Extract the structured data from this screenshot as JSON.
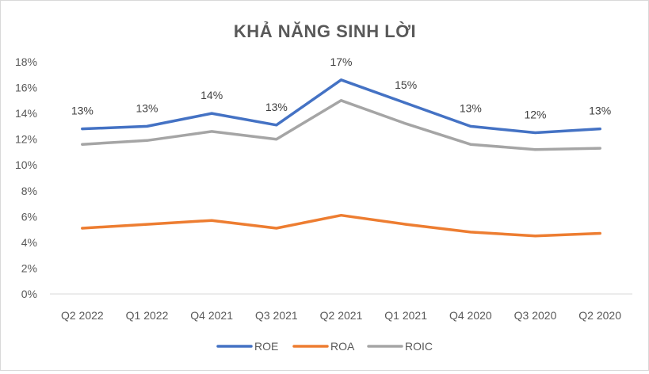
{
  "chart_data": {
    "type": "line",
    "title": "KHẢ NĂNG SINH LỜI",
    "categories": [
      "Q2 2022",
      "Q1 2022",
      "Q4 2021",
      "Q3 2021",
      "Q2 2021",
      "Q1 2021",
      "Q4 2020",
      "Q3 2020",
      "Q2 2020"
    ],
    "ylim": [
      0,
      18
    ],
    "yticks": [
      "0%",
      "2%",
      "4%",
      "6%",
      "8%",
      "10%",
      "12%",
      "14%",
      "16%",
      "18%"
    ],
    "grid": false,
    "legend_position": "bottom",
    "series": [
      {
        "name": "ROE",
        "color": "#4472c4",
        "values": [
          12.8,
          13.0,
          14.0,
          13.1,
          16.6,
          14.8,
          13.0,
          12.5,
          12.8
        ],
        "data_labels": [
          "13%",
          "13%",
          "14%",
          "13%",
          "17%",
          "15%",
          "13%",
          "12%",
          "13%"
        ]
      },
      {
        "name": "ROA",
        "color": "#ed7d31",
        "values": [
          5.1,
          5.4,
          5.7,
          5.1,
          6.1,
          5.4,
          4.8,
          4.5,
          4.7
        ]
      },
      {
        "name": "ROIC",
        "color": "#a5a5a5",
        "values": [
          11.6,
          11.9,
          12.6,
          12.0,
          15.0,
          13.2,
          11.6,
          11.2,
          11.3
        ]
      }
    ]
  }
}
